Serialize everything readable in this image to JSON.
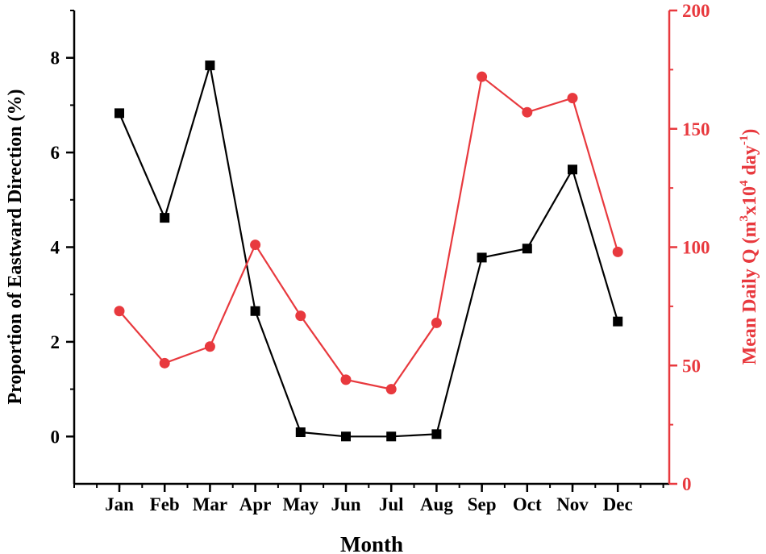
{
  "chart_data": {
    "type": "line",
    "categories": [
      "Jan",
      "Feb",
      "Mar",
      "Apr",
      "May",
      "Jun",
      "Jul",
      "Aug",
      "Sep",
      "Oct",
      "Nov",
      "Dec"
    ],
    "xlabel": "Month",
    "ylabel": "Proportion of Eastward Direction (%)",
    "ylabel_right": {
      "prefix": "Mean Daily Q (m",
      "sup1": "3",
      "mid": "x10",
      "sup2": "4",
      "mid2": " day",
      "sup3": "-1",
      "suffix": ")"
    },
    "ylim": [
      -1,
      9
    ],
    "yticks": [
      0,
      2,
      4,
      6,
      8
    ],
    "ylim_right": [
      0,
      200
    ],
    "yticks_right": [
      0,
      50,
      100,
      150,
      200
    ],
    "grid": false,
    "series": [
      {
        "axis": "left",
        "color": "#000000",
        "marker": "square",
        "values": [
          6.83,
          4.62,
          7.84,
          2.65,
          0.09,
          0.0,
          0.0,
          0.05,
          3.78,
          3.97,
          5.64,
          2.43
        ]
      },
      {
        "axis": "right",
        "color": "#e8393e",
        "marker": "circle",
        "values": [
          73,
          51,
          58,
          101,
          71,
          44,
          40,
          68,
          172,
          157,
          163,
          98
        ]
      }
    ]
  }
}
